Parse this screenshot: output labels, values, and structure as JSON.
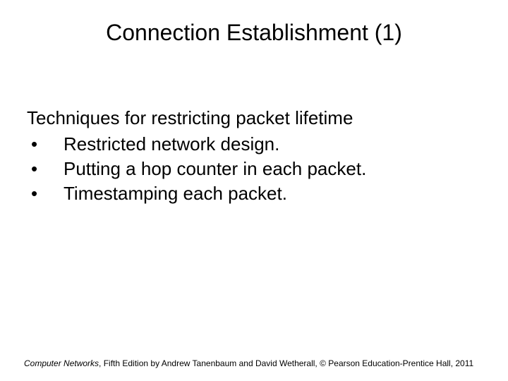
{
  "title": "Connection Establishment (1)",
  "lead": "Techniques for restricting packet lifetime",
  "bullets": [
    "Restricted network design.",
    "Putting a hop counter in each packet.",
    "Timestamping each packet."
  ],
  "bullet_char": "•",
  "footer": {
    "book": "Computer Networks",
    "rest": ", Fifth Edition by Andrew Tanenbaum and David Wetherall, © Pearson Education-Prentice Hall, 2011"
  },
  "colors": {
    "background": "#ffffff",
    "text": "#000000"
  },
  "fontsizes": {
    "title": 32,
    "body": 26,
    "footer": 12
  }
}
